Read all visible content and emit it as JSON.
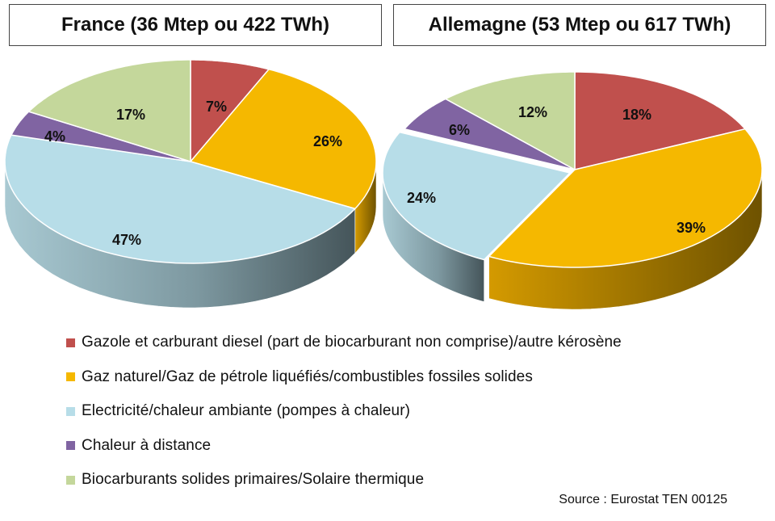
{
  "source_text": "Source : Eurostat TEN 00125",
  "colors": {
    "diesel": "#c0504d",
    "gas": "#f5b800",
    "electricity": "#b7dde8",
    "district_heat": "#8064a2",
    "biofuels": "#c4d79b"
  },
  "chart_data": [
    {
      "type": "pie",
      "title": "France (36 Mtep ou 422 TWh)",
      "labels": [
        "Gazole et carburant diesel (part de biocarburant non comprise)/autre kérosène",
        "Gaz naturel/Gaz de pétrole liquéfiés/combustibles fossiles solides",
        "Electricité/chaleur ambiante (pompes à chaleur)",
        "Chaleur à distance",
        "Biocarburants solides primaires/Solaire thermique"
      ],
      "values": [
        7,
        26,
        47,
        4,
        17
      ],
      "value_labels": [
        "7%",
        "26%",
        "47%",
        "4%",
        "17%"
      ],
      "style": "3d-tilted"
    },
    {
      "type": "pie",
      "title": "Allemagne (53 Mtep ou 617 TWh)",
      "labels": [
        "Gazole et carburant diesel (part de biocarburant non comprise)/autre kérosène",
        "Gaz naturel/Gaz de pétrole liquéfiés/combustibles fossiles solides",
        "Electricité/chaleur ambiante (pompes à chaleur)",
        "Chaleur à distance",
        "Biocarburants solides primaires/Solaire thermique"
      ],
      "values": [
        18,
        39,
        24,
        6,
        12
      ],
      "value_labels": [
        "18%",
        "39%",
        "24%",
        "6%",
        "12%"
      ],
      "style": "3d-tilted"
    }
  ],
  "legend": [
    {
      "label": "Gazole et carburant diesel (part de biocarburant non comprise)/autre kérosène",
      "color": "#c0504d"
    },
    {
      "label": "Gaz naturel/Gaz de pétrole liquéfiés/combustibles fossiles solides",
      "color": "#f5b800"
    },
    {
      "label": "Electricité/chaleur ambiante (pompes à chaleur)",
      "color": "#b7dde8"
    },
    {
      "label": "Chaleur à distance",
      "color": "#8064a2"
    },
    {
      "label": "Biocarburants solides primaires/Solaire thermique",
      "color": "#c4d79b"
    }
  ]
}
